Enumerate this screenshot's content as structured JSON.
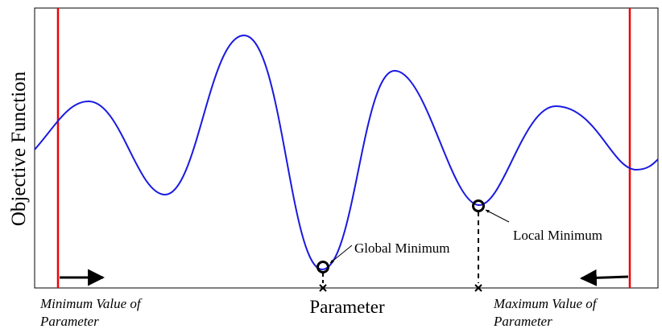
{
  "y_axis_label": "Objective Function",
  "x_axis_label": "Parameter",
  "annotations": {
    "global_minimum": "Global Minimum",
    "local_minimum": "Local Minimum"
  },
  "bounds": {
    "minimum": {
      "lines": [
        "Minimum Value of",
        "Parameter"
      ]
    },
    "maximum": {
      "lines": [
        "Maximum Value of",
        "Parameter"
      ]
    }
  }
}
